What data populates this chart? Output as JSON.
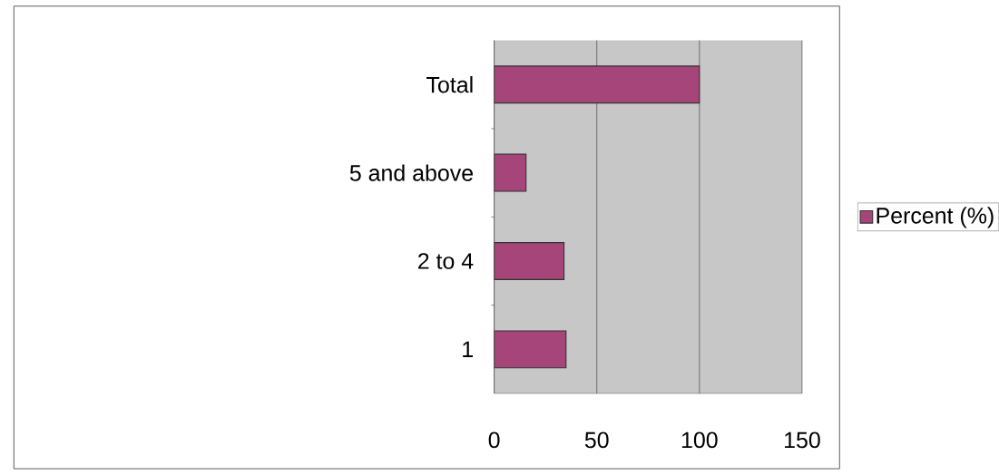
{
  "chart_data": {
    "type": "bar",
    "orientation": "horizontal",
    "categories": [
      "Total",
      "5 and above",
      "2 to 4",
      "1"
    ],
    "series": [
      {
        "name": "Percent (%)",
        "color": "#a5457a",
        "values": [
          100,
          15.5,
          34,
          35
        ]
      }
    ],
    "xlim": [
      0,
      150
    ],
    "xticks": [
      0,
      50,
      100,
      150
    ],
    "grid": "x",
    "legend": "right"
  }
}
